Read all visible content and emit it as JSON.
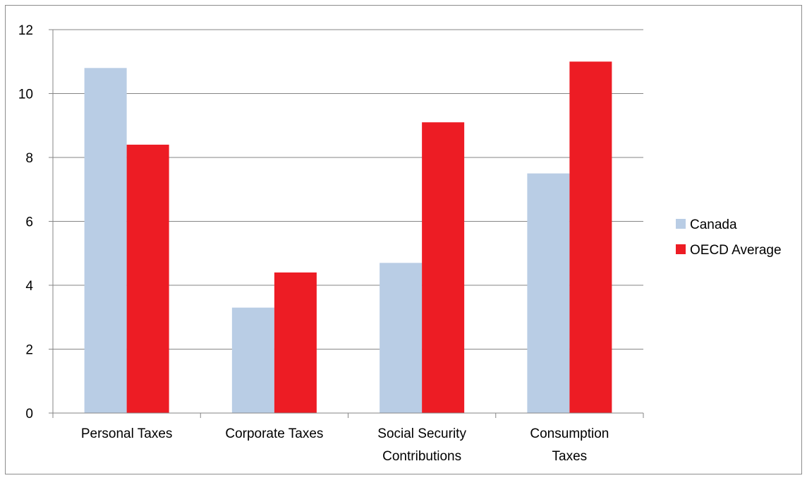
{
  "chart_data": {
    "type": "bar",
    "categories": [
      [
        "Personal Taxes"
      ],
      [
        "Corporate Taxes"
      ],
      [
        "Social Security",
        "Contributions"
      ],
      [
        "Consumption",
        "Taxes"
      ]
    ],
    "series": [
      {
        "name": "Canada",
        "color": "#b9cde5",
        "values": [
          10.8,
          3.3,
          4.7,
          7.5
        ]
      },
      {
        "name": "OECD Average",
        "color": "#ed1c24",
        "values": [
          8.4,
          4.4,
          9.1,
          11.0
        ]
      }
    ],
    "ylim": [
      0,
      12
    ],
    "yticks": [
      0,
      2,
      4,
      6,
      8,
      10,
      12
    ],
    "grid": true,
    "legend_position": "right",
    "title": "",
    "xlabel": "",
    "ylabel": ""
  }
}
